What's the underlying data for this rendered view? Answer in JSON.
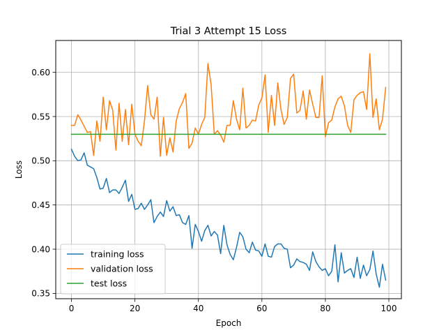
{
  "chart_data": {
    "type": "line",
    "title": "Trial 3 Attempt 15 Loss",
    "xlabel": "Epoch",
    "ylabel": "Loss",
    "xlim": [
      -4.95,
      103.95
    ],
    "ylim": [
      0.344,
      0.636
    ],
    "xticks": [
      0,
      20,
      40,
      60,
      80,
      100
    ],
    "yticks": [
      0.35,
      0.4,
      0.45,
      0.5,
      0.55,
      0.6
    ],
    "ytick_labels": [
      "0.35",
      "0.40",
      "0.45",
      "0.50",
      "0.55",
      "0.60"
    ],
    "grid": true,
    "legend_position": "lower-left",
    "series": [
      {
        "name": "training loss",
        "color": "#1f77b4",
        "values": [
          0.513,
          0.505,
          0.5,
          0.501,
          0.509,
          0.495,
          0.493,
          0.491,
          0.481,
          0.468,
          0.469,
          0.48,
          0.464,
          0.467,
          0.467,
          0.463,
          0.47,
          0.478,
          0.454,
          0.462,
          0.445,
          0.446,
          0.452,
          0.445,
          0.45,
          0.456,
          0.43,
          0.437,
          0.442,
          0.437,
          0.455,
          0.443,
          0.448,
          0.438,
          0.439,
          0.43,
          0.428,
          0.438,
          0.401,
          0.428,
          0.42,
          0.409,
          0.421,
          0.427,
          0.415,
          0.42,
          0.416,
          0.395,
          0.427,
          0.405,
          0.394,
          0.388,
          0.402,
          0.419,
          0.414,
          0.4,
          0.396,
          0.408,
          0.399,
          0.398,
          0.392,
          0.406,
          0.392,
          0.391,
          0.403,
          0.406,
          0.406,
          0.401,
          0.4,
          0.379,
          0.382,
          0.389,
          0.386,
          0.385,
          0.383,
          0.376,
          0.397,
          0.386,
          0.38,
          0.376,
          0.378,
          0.37,
          0.375,
          0.405,
          0.363,
          0.396,
          0.373,
          0.376,
          0.378,
          0.368,
          0.391,
          0.367,
          0.382,
          0.37,
          0.377,
          0.398,
          0.372,
          0.357,
          0.383,
          0.365
        ]
      },
      {
        "name": "validation loss",
        "color": "#ff7f0e",
        "values": [
          0.54,
          0.54,
          0.552,
          0.546,
          0.539,
          0.532,
          0.533,
          0.506,
          0.545,
          0.522,
          0.572,
          0.535,
          0.568,
          0.557,
          0.512,
          0.565,
          0.522,
          0.558,
          0.518,
          0.564,
          0.53,
          0.522,
          0.517,
          0.545,
          0.585,
          0.552,
          0.547,
          0.572,
          0.505,
          0.549,
          0.506,
          0.526,
          0.51,
          0.545,
          0.559,
          0.566,
          0.576,
          0.514,
          0.52,
          0.537,
          0.53,
          0.541,
          0.549,
          0.61,
          0.586,
          0.53,
          0.534,
          0.529,
          0.521,
          0.54,
          0.54,
          0.568,
          0.547,
          0.535,
          0.582,
          0.537,
          0.54,
          0.546,
          0.545,
          0.563,
          0.571,
          0.597,
          0.532,
          0.574,
          0.54,
          0.588,
          0.558,
          0.541,
          0.549,
          0.593,
          0.598,
          0.554,
          0.557,
          0.579,
          0.547,
          0.58,
          0.564,
          0.549,
          0.549,
          0.596,
          0.527,
          0.543,
          0.546,
          0.561,
          0.57,
          0.573,
          0.562,
          0.54,
          0.532,
          0.569,
          0.574,
          0.577,
          0.578,
          0.558,
          0.621,
          0.549,
          0.57,
          0.535,
          0.547,
          0.583
        ]
      },
      {
        "name": "test loss",
        "color": "#2ca02c",
        "values": [
          0.53,
          0.53,
          0.53,
          0.53,
          0.53,
          0.53,
          0.53,
          0.53,
          0.53,
          0.53,
          0.53,
          0.53,
          0.53,
          0.53,
          0.53,
          0.53,
          0.53,
          0.53,
          0.53,
          0.53,
          0.53,
          0.53,
          0.53,
          0.53,
          0.53,
          0.53,
          0.53,
          0.53,
          0.53,
          0.53,
          0.53,
          0.53,
          0.53,
          0.53,
          0.53,
          0.53,
          0.53,
          0.53,
          0.53,
          0.53,
          0.53,
          0.53,
          0.53,
          0.53,
          0.53,
          0.53,
          0.53,
          0.53,
          0.53,
          0.53,
          0.53,
          0.53,
          0.53,
          0.53,
          0.53,
          0.53,
          0.53,
          0.53,
          0.53,
          0.53,
          0.53,
          0.53,
          0.53,
          0.53,
          0.53,
          0.53,
          0.53,
          0.53,
          0.53,
          0.53,
          0.53,
          0.53,
          0.53,
          0.53,
          0.53,
          0.53,
          0.53,
          0.53,
          0.53,
          0.53,
          0.53,
          0.53,
          0.53,
          0.53,
          0.53,
          0.53,
          0.53,
          0.53,
          0.53,
          0.53,
          0.53,
          0.53,
          0.53,
          0.53,
          0.53,
          0.53,
          0.53,
          0.53,
          0.53,
          0.53
        ]
      }
    ]
  }
}
